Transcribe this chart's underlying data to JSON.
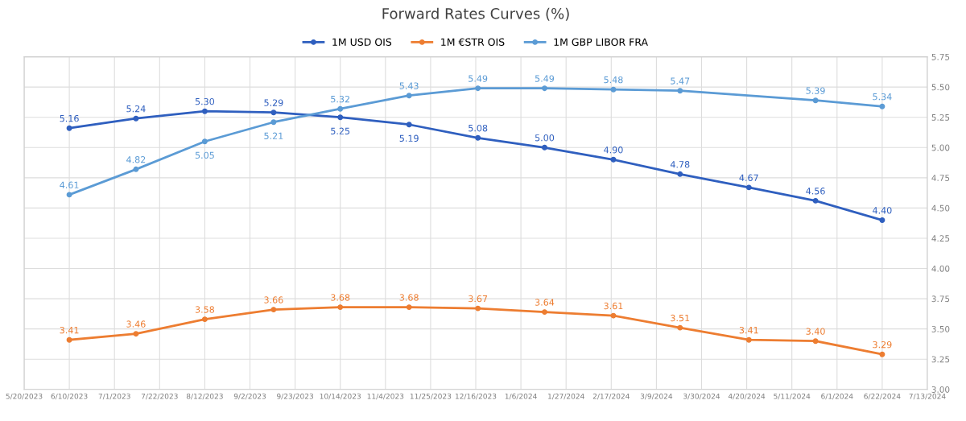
{
  "chart_data": {
    "type": "line",
    "title": "Forward Rates Curves (%)",
    "x": [
      "2023-06-10",
      "2023-07-11",
      "2023-08-12",
      "2023-09-13",
      "2023-10-14",
      "2023-11-15",
      "2023-12-17",
      "2024-01-17",
      "2024-02-18",
      "2024-03-20",
      "2024-04-21",
      "2024-05-22",
      "2024-06-22"
    ],
    "series": [
      {
        "name": "1M USD OIS",
        "color": "#2f5fbf",
        "values": [
          5.16,
          5.24,
          5.3,
          5.29,
          5.25,
          5.19,
          5.08,
          5.0,
          4.9,
          4.78,
          4.67,
          4.56,
          4.4
        ],
        "value_labels": [
          "5.16",
          "5.24",
          "5.30",
          "5.29",
          "5.25",
          "5.19",
          "5.08",
          "5.00",
          "4.90",
          "4.78",
          "4.67",
          "4.56",
          "4.40"
        ]
      },
      {
        "name": "1M €STR OIS",
        "color": "#ed7d31",
        "values": [
          3.41,
          3.46,
          3.58,
          3.66,
          3.68,
          3.68,
          3.67,
          3.64,
          3.61,
          3.51,
          3.41,
          3.4,
          3.29
        ],
        "value_labels": [
          "3.41",
          "3.46",
          "3.58",
          "3.66",
          "3.68",
          "3.68",
          "3.67",
          "3.64",
          "3.61",
          "3.51",
          "3.41",
          "3.40",
          "3.29"
        ]
      },
      {
        "name": "1M GBP LIBOR FRA",
        "color": "#5b9bd5",
        "x": [
          "2023-06-10",
          "2023-07-11",
          "2023-08-12",
          "2023-09-13",
          "2023-10-14",
          "2023-11-15",
          "2023-12-17",
          "2024-01-17",
          "2024-02-18",
          "2024-03-20",
          "2024-05-22",
          "2024-06-22"
        ],
        "values": [
          4.61,
          4.82,
          5.05,
          5.21,
          5.32,
          5.43,
          5.49,
          5.49,
          5.48,
          5.47,
          5.39,
          5.34
        ],
        "value_labels": [
          "4.61",
          "4.82",
          "5.05",
          "5.21",
          "5.32",
          "5.43",
          "5.49",
          "5.49",
          "5.48",
          "5.47",
          "5.39",
          "5.34"
        ]
      }
    ],
    "xlim": [
      "2023-05-20",
      "2024-07-13"
    ],
    "xticks": [
      {
        "value": "2023-05-20",
        "label": "5/20/2023"
      },
      {
        "value": "2023-06-10",
        "label": "6/10/2023"
      },
      {
        "value": "2023-07-01",
        "label": "7/1/2023"
      },
      {
        "value": "2023-07-22",
        "label": "7/22/2023"
      },
      {
        "value": "2023-08-12",
        "label": "8/12/2023"
      },
      {
        "value": "2023-09-02",
        "label": "9/2/2023"
      },
      {
        "value": "2023-09-23",
        "label": "9/23/2023"
      },
      {
        "value": "2023-10-14",
        "label": "10/14/2023"
      },
      {
        "value": "2023-11-04",
        "label": "11/4/2023"
      },
      {
        "value": "2023-11-25",
        "label": "11/25/2023"
      },
      {
        "value": "2023-12-16",
        "label": "12/16/2023"
      },
      {
        "value": "2024-01-06",
        "label": "1/6/2024"
      },
      {
        "value": "2024-01-27",
        "label": "1/27/2024"
      },
      {
        "value": "2024-02-17",
        "label": "2/17/2024"
      },
      {
        "value": "2024-03-09",
        "label": "3/9/2024"
      },
      {
        "value": "2024-03-30",
        "label": "3/30/2024"
      },
      {
        "value": "2024-04-20",
        "label": "4/20/2024"
      },
      {
        "value": "2024-05-11",
        "label": "5/11/2024"
      },
      {
        "value": "2024-06-01",
        "label": "6/1/2024"
      },
      {
        "value": "2024-06-22",
        "label": "6/22/2024"
      },
      {
        "value": "2024-07-13",
        "label": "7/13/2024"
      }
    ],
    "ylim": [
      3.0,
      5.75
    ],
    "yticks": [
      {
        "value": 3.0,
        "label": "3.00"
      },
      {
        "value": 3.25,
        "label": "3.25"
      },
      {
        "value": 3.5,
        "label": "3.50"
      },
      {
        "value": 3.75,
        "label": "3.75"
      },
      {
        "value": 4.0,
        "label": "4.00"
      },
      {
        "value": 4.25,
        "label": "4.25"
      },
      {
        "value": 4.5,
        "label": "4.50"
      },
      {
        "value": 4.75,
        "label": "4.75"
      },
      {
        "value": 5.0,
        "label": "5.00"
      },
      {
        "value": 5.25,
        "label": "5.25"
      },
      {
        "value": 5.5,
        "label": "5.50"
      },
      {
        "value": 5.75,
        "label": "5.75"
      }
    ],
    "grid": true,
    "legend": "top",
    "marker": "circle",
    "line_style": "solid"
  }
}
